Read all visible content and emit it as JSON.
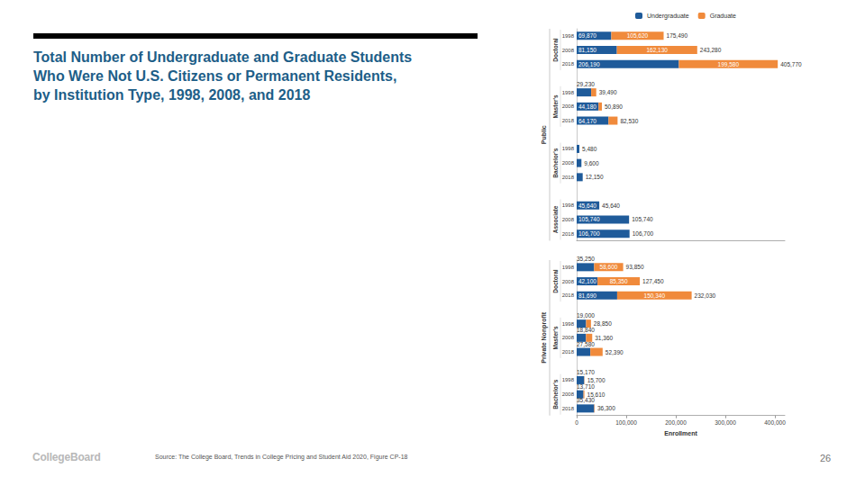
{
  "slide": {
    "title": [
      "Total Number of Undergraduate and Graduate Students",
      "Who Were Not U.S. Citizens or Permanent Residents,",
      "by Institution Type, 1998, 2008, and 2018"
    ],
    "source": "Source: The College Board, Trends in College Pricing and Student Aid 2020, Figure CP-18",
    "logo": "CollegeBoard",
    "page": "26"
  },
  "chart_data": [
    {
      "type": "bar",
      "title": "Public",
      "orientation": "horizontal",
      "stacked": true,
      "data_labels": true,
      "grid": false,
      "legend": "top",
      "tick_labels": "y",
      "groups": [
        {
          "name": "Doctoral",
          "size": 3
        },
        {
          "name": "Master's",
          "size": 3
        },
        {
          "name": "Bachelor's",
          "size": 3
        },
        {
          "name": "Associate",
          "size": 3
        }
      ],
      "categories": [
        "1998",
        "2008",
        "2018",
        "1998",
        "2008",
        "2018",
        "1998",
        "2008",
        "2018",
        "1998",
        "2008",
        "2018"
      ],
      "series": [
        {
          "name": "Undergraduate",
          "color": "#1f5b9a",
          "values": [
            69870,
            81150,
            206190,
            29230,
            44180,
            64170,
            5480,
            9600,
            12150,
            45640,
            105740,
            106700
          ],
          "value_labels": [
            "69,870",
            "81,150",
            "206,190",
            "29,230",
            "44,180",
            "64,170",
            null,
            null,
            null,
            "45,640",
            "105,740",
            "106,700"
          ]
        },
        {
          "name": "Graduate",
          "color": "#f08a3b",
          "values": [
            105620,
            162130,
            199580,
            10260,
            6710,
            18360,
            0,
            0,
            0,
            0,
            0,
            0
          ],
          "value_labels": [
            "105,620",
            "162,130",
            "199,580",
            null,
            null,
            null,
            null,
            null,
            null,
            null,
            null,
            null
          ]
        }
      ],
      "totals": [
        175490,
        243280,
        405770,
        39490,
        50890,
        82530,
        5480,
        9600,
        12150,
        45640,
        105740,
        106700
      ],
      "total_labels": [
        "175,490",
        "243,280",
        "405,770",
        "39,490",
        "50,890",
        "82,530",
        "5,480",
        "9,600",
        "12,150",
        "45,640",
        "105,740",
        "106,700"
      ],
      "xlim": [
        0,
        420000
      ]
    },
    {
      "type": "bar",
      "title": "Private Nonprofit",
      "orientation": "horizontal",
      "stacked": true,
      "data_labels": true,
      "grid": false,
      "xlabel": "Enrollment",
      "groups": [
        {
          "name": "Doctoral",
          "size": 3
        },
        {
          "name": "Master's",
          "size": 3
        },
        {
          "name": "Bachelor's",
          "size": 3
        }
      ],
      "categories": [
        "1998",
        "2008",
        "2018",
        "1998",
        "2008",
        "2018",
        "1998",
        "2008",
        "2018"
      ],
      "series": [
        {
          "name": "Undergraduate",
          "color": "#1f5b9a",
          "values": [
            35250,
            42100,
            81690,
            19000,
            18840,
            27580,
            15170,
            13710,
            35430
          ],
          "value_labels": [
            "35,250",
            "42,100",
            "81,690",
            "19,000",
            "18,840",
            "27,580",
            "15,170",
            "13,710",
            "35,430"
          ]
        },
        {
          "name": "Graduate",
          "color": "#f08a3b",
          "values": [
            58600,
            85350,
            150340,
            9850,
            12520,
            24810,
            530,
            1900,
            870
          ],
          "value_labels": [
            "58,600",
            "85,350",
            "150,340",
            null,
            null,
            null,
            null,
            null,
            null
          ]
        }
      ],
      "totals": [
        93850,
        127450,
        232030,
        28850,
        31360,
        52390,
        15700,
        15610,
        36300
      ],
      "total_labels": [
        "93,850",
        "127,450",
        "232,030",
        "28,850",
        "31,360",
        "52,390",
        "15,700",
        "15,610",
        "36,300"
      ],
      "xlim": [
        0,
        420000
      ],
      "xticks": [
        0,
        {
          "value": 100000,
          "label": "100,000"
        },
        {
          "value": 200000,
          "label": "200,000"
        },
        {
          "value": 300000,
          "label": "300,000"
        },
        {
          "value": 400000,
          "label": "400,000"
        }
      ]
    }
  ]
}
